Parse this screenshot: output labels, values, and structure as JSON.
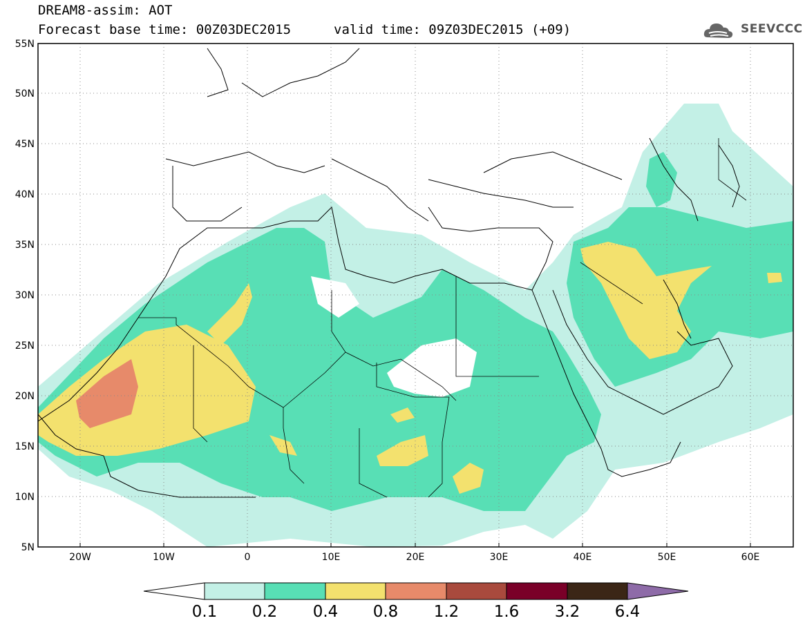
{
  "header": {
    "title": "DREAM8-assim: AOT",
    "base_time": "Forecast base time: 00Z03DEC2015",
    "valid_time": "valid time: 09Z03DEC2015 (+09)"
  },
  "logo": {
    "text": "SEEVCCC",
    "icon": "cloud-icon"
  },
  "map": {
    "lon_range": [
      -25,
      65
    ],
    "lat_range": [
      5,
      55
    ],
    "lat_ticks": [
      "5N",
      "10N",
      "15N",
      "20N",
      "25N",
      "30N",
      "35N",
      "40N",
      "45N",
      "50N",
      "55N"
    ],
    "lon_ticks": [
      "20W",
      "10W",
      "0",
      "10E",
      "20E",
      "30E",
      "40E",
      "50E",
      "60E"
    ],
    "grid": "dotted"
  },
  "colorbar": {
    "labels": [
      "0.1",
      "0.2",
      "0.4",
      "0.8",
      "1.2",
      "1.6",
      "3.2",
      "6.4"
    ],
    "colors": [
      "#ffffff",
      "#c3f0e6",
      "#58dfb5",
      "#f3e16e",
      "#e78a6a",
      "#a94a3d",
      "#7a0028",
      "#3b2616",
      "#8e6ba8"
    ]
  }
}
